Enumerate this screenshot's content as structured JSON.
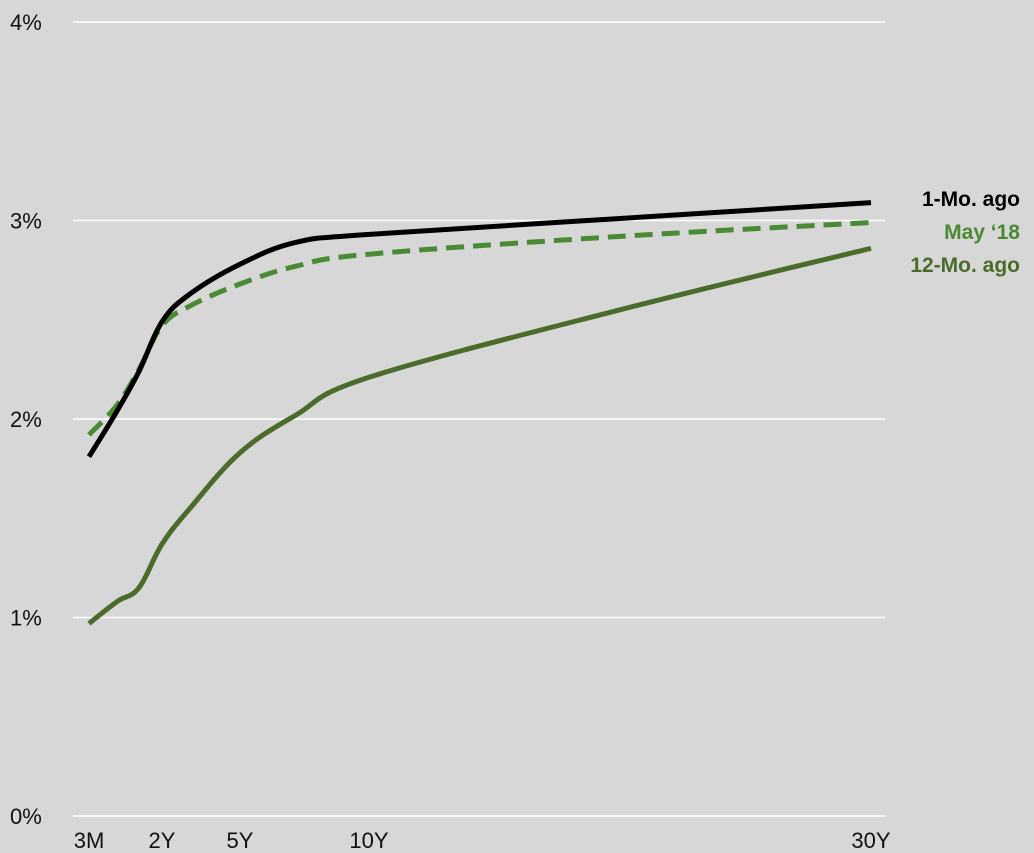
{
  "chart_data": {
    "type": "line",
    "title": "",
    "xlabel": "",
    "ylabel": "",
    "ylim": [
      0,
      4
    ],
    "grid": "horizontal",
    "legend_placement": "right",
    "x": [
      0.25,
      0.5,
      1,
      2,
      3,
      5,
      7,
      10,
      20,
      30
    ],
    "xticks": [
      {
        "value": 0.25,
        "label": "3M"
      },
      {
        "value": 2,
        "label": "2Y"
      },
      {
        "value": 5,
        "label": "5Y"
      },
      {
        "value": 10,
        "label": "10Y"
      },
      {
        "value": 30,
        "label": "30Y"
      }
    ],
    "yticks": [
      {
        "value": 0,
        "label": "0%"
      },
      {
        "value": 1,
        "label": "1%"
      },
      {
        "value": 2,
        "label": "2%"
      },
      {
        "value": 3,
        "label": "3%"
      },
      {
        "value": 4,
        "label": "4%"
      }
    ],
    "series": [
      {
        "name": "1-Mo. ago",
        "color": "#000000",
        "dashed": false,
        "values": [
          1.81,
          2.04,
          2.24,
          2.49,
          2.63,
          2.78,
          2.89,
          2.93,
          3.01,
          3.09
        ]
      },
      {
        "name": "May ‘18",
        "color": "#4a8a35",
        "dashed": true,
        "values": [
          1.92,
          2.07,
          2.25,
          2.47,
          2.57,
          2.68,
          2.77,
          2.83,
          2.92,
          2.99
        ]
      },
      {
        "name": "12-Mo. ago",
        "color": "#4a6b2a",
        "dashed": false,
        "values": [
          0.97,
          1.08,
          1.15,
          1.37,
          1.55,
          1.83,
          2.02,
          2.21,
          2.55,
          2.86
        ]
      }
    ]
  }
}
